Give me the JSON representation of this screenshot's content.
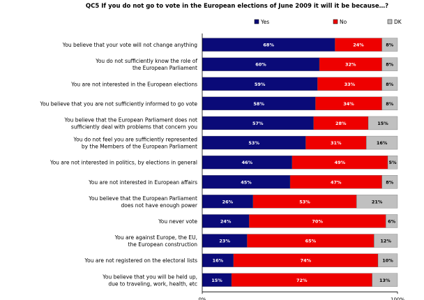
{
  "chart_data": {
    "type": "bar",
    "orientation": "horizontal",
    "stacked": true,
    "title": "QC5 If you do not go to vote in the European elections of June 2009 it will it be because…?",
    "categories": [
      [
        "You believe that your vote will not change anything"
      ],
      [
        "You do not sufficiently know the role of",
        "the European Parliament"
      ],
      [
        "You are not interested in the European elections"
      ],
      [
        "You believe that you are not sufficiently informed to go vote"
      ],
      [
        "You believe that the European Parliament does not",
        "sufficiently deal with problems that concern you"
      ],
      [
        "You do not feel you are sufficiently represented",
        "by the Members of the European Parliament"
      ],
      [
        "You are not interested in politics, by elections in general"
      ],
      [
        "You are not interested in European affairs"
      ],
      [
        "You believe that the European Parliament",
        "does not have enough power"
      ],
      [
        "You never vote"
      ],
      [
        "You are against Europe, the EU,",
        "the European construction"
      ],
      [
        "You are not registered on the electoral lists"
      ],
      [
        "You believe that you will be held up,",
        "due to traveling, work, health, etc"
      ]
    ],
    "series": [
      {
        "name": "Yes",
        "color": "#0a0a78",
        "label_color": "#ffffff",
        "values": [
          68,
          60,
          59,
          58,
          57,
          53,
          46,
          45,
          26,
          24,
          23,
          16,
          15
        ]
      },
      {
        "name": "No",
        "color": "#ee0000",
        "label_color": "#ffffff",
        "values": [
          24,
          32,
          33,
          34,
          28,
          31,
          49,
          47,
          53,
          70,
          65,
          74,
          72
        ]
      },
      {
        "name": "DK",
        "color": "#c0c0c0",
        "label_color": "#000000",
        "values": [
          8,
          8,
          8,
          8,
          15,
          16,
          5,
          8,
          21,
          6,
          12,
          10,
          13
        ]
      }
    ],
    "value_suffix": "%",
    "xlim": [
      0,
      100
    ],
    "x_ticks": [
      0,
      100
    ],
    "x_tick_labels": [
      "0%",
      "100%"
    ],
    "legend_position": "top",
    "grid": false
  }
}
